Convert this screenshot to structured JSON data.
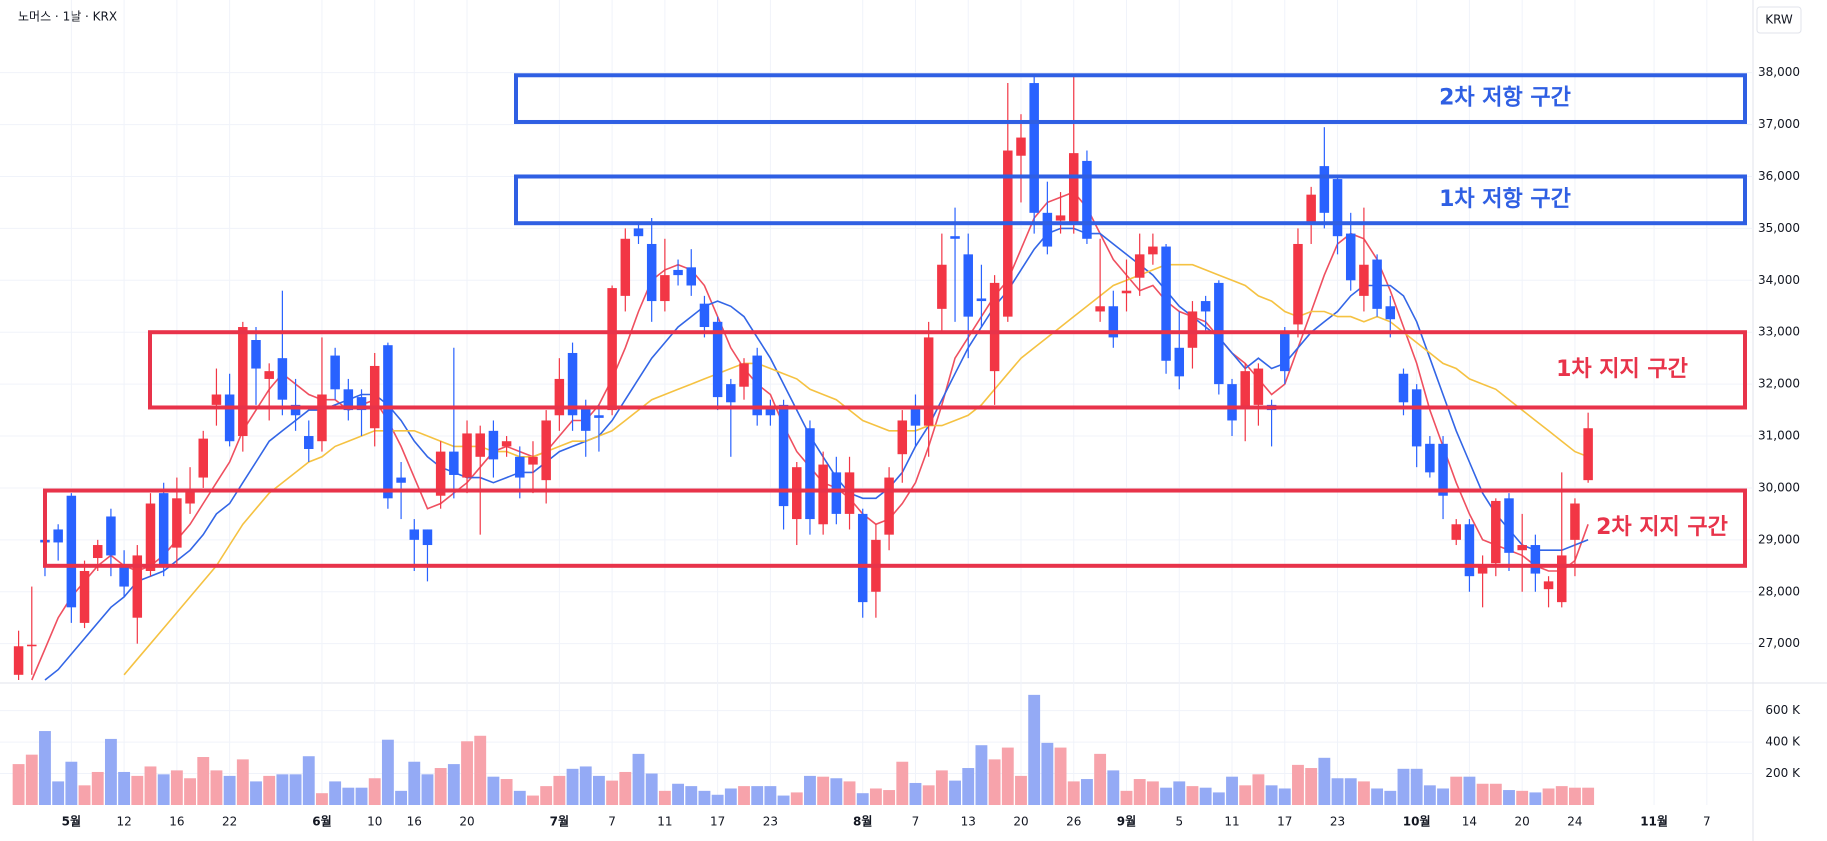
{
  "chart_data": {
    "type": "candlestick",
    "title": "노머스 · 1날 · KRX",
    "currency": "KRW",
    "categories": [
      null,
      null,
      null,
      null,
      "5월",
      null,
      null,
      null,
      "12",
      null,
      null,
      null,
      "16",
      null,
      null,
      null,
      "22",
      null,
      null,
      null,
      null,
      null,
      null,
      "6월",
      null,
      null,
      null,
      "10",
      null,
      null,
      "16",
      null,
      null,
      null,
      "20",
      null,
      null,
      null,
      null,
      null,
      null,
      "7월",
      null,
      null,
      null,
      "7",
      null,
      null,
      null,
      "11",
      null,
      null,
      null,
      "17",
      null,
      null,
      null,
      "23",
      null,
      null,
      null,
      null,
      null,
      null,
      "8월",
      null,
      null,
      null,
      "7",
      null,
      null,
      null,
      "13",
      null,
      null,
      null,
      "20",
      null,
      null,
      null,
      "26",
      null,
      null,
      null,
      "9월",
      null,
      null,
      null,
      "5",
      null,
      null,
      null,
      "11",
      null,
      null,
      null,
      "17",
      null,
      null,
      null,
      "23",
      null,
      null,
      null,
      null,
      null,
      "10월",
      null,
      null,
      null,
      "14",
      null,
      null,
      null,
      "20",
      null,
      null,
      null,
      "24",
      null,
      null,
      null,
      null,
      null,
      "11월",
      null,
      null,
      null,
      "7",
      null,
      null,
      null
    ],
    "open": [
      26400,
      26950,
      29000,
      29200,
      29850,
      27400,
      28650,
      29450,
      28500,
      27500,
      28400,
      29900,
      28850,
      29700,
      30200,
      31600,
      31800,
      31000,
      32850,
      32100,
      32500,
      31600,
      31000,
      30900,
      32550,
      31900,
      31750,
      31150,
      32750,
      30200,
      29200,
      29200,
      29850,
      30700,
      30200,
      30600,
      31100,
      30800,
      30600,
      30450,
      30150,
      31400,
      32600,
      31550,
      31400,
      31500,
      33700,
      35000,
      34700,
      33600,
      34200,
      34250,
      33550,
      33200,
      32000,
      31950,
      32550,
      31550,
      31600,
      29400,
      31150,
      29300,
      30300,
      29500,
      29500,
      28000,
      29100,
      30650,
      31550,
      31200,
      33450,
      34850,
      34500,
      33650,
      32250,
      33300,
      36400,
      37800,
      35300,
      35150,
      35100,
      36300,
      33400,
      33500,
      33750,
      34050,
      34500,
      34650,
      32700,
      32700,
      33600,
      33950,
      32000,
      31550,
      31600,
      31600,
      33000,
      33150,
      35100,
      36200,
      35950,
      34900,
      33700,
      34400,
      33500,
      32200,
      31900,
      30850,
      30850,
      29000,
      29300,
      28350,
      28550,
      29800,
      28800,
      28900,
      28050,
      27800,
      29000,
      30150,
      null,
      null,
      null,
      null,
      null,
      null,
      null,
      null,
      null,
      null,
      null,
      null
    ],
    "high": [
      27250,
      28100,
      29500,
      29300,
      29900,
      28600,
      29000,
      29600,
      28800,
      28900,
      29900,
      30100,
      30200,
      30400,
      31100,
      32300,
      32200,
      33200,
      33100,
      32400,
      33800,
      32100,
      31300,
      32900,
      32700,
      32100,
      31900,
      32600,
      32800,
      30500,
      29400,
      29200,
      30900,
      32700,
      31300,
      31200,
      31300,
      31000,
      30800,
      30900,
      31500,
      32500,
      32800,
      31700,
      31600,
      33900,
      35000,
      35100,
      35200,
      34800,
      34400,
      34600,
      33700,
      33300,
      32100,
      32500,
      32700,
      31700,
      31700,
      30500,
      31300,
      30700,
      30600,
      30600,
      29600,
      29300,
      30400,
      31500,
      31800,
      33200,
      34900,
      35400,
      34900,
      34300,
      34100,
      37800,
      37200,
      37950,
      35900,
      35700,
      37950,
      36500,
      34800,
      33800,
      34400,
      34900,
      34900,
      34700,
      33400,
      33600,
      33700,
      34000,
      32100,
      32400,
      32400,
      31700,
      33100,
      35000,
      35800,
      36950,
      36000,
      35300,
      35400,
      34500,
      33700,
      32300,
      32000,
      31000,
      31000,
      29400,
      29400,
      28700,
      29800,
      29900,
      29500,
      29100,
      28300,
      30300,
      29800,
      31450,
      null,
      null,
      null,
      null,
      null,
      null,
      null,
      null,
      null,
      null,
      null,
      null
    ],
    "low": [
      26300,
      26400,
      28300,
      28600,
      27400,
      27300,
      28400,
      28300,
      27900,
      27000,
      28300,
      28300,
      28500,
      29500,
      30000,
      31200,
      30800,
      30700,
      31600,
      31300,
      31400,
      31100,
      30500,
      30700,
      31700,
      31300,
      31000,
      30800,
      29600,
      29400,
      28400,
      28200,
      29600,
      29800,
      29900,
      29100,
      30200,
      30600,
      29800,
      29900,
      29700,
      31100,
      31100,
      30600,
      30700,
      31400,
      33400,
      34700,
      33200,
      33400,
      33900,
      33700,
      32900,
      31500,
      30600,
      31700,
      31200,
      31200,
      29200,
      28900,
      29100,
      29100,
      29300,
      29200,
      27500,
      27500,
      28800,
      30100,
      30800,
      30600,
      33000,
      33200,
      32500,
      33100,
      31600,
      33200,
      35500,
      34900,
      34500,
      34900,
      34900,
      34700,
      33200,
      32700,
      33400,
      33700,
      34300,
      32200,
      31900,
      32300,
      33000,
      31800,
      31000,
      30900,
      31200,
      30800,
      32000,
      32900,
      34700,
      35000,
      34500,
      33800,
      33400,
      33300,
      32900,
      31400,
      30400,
      30200,
      29400,
      28900,
      28000,
      27700,
      28300,
      28400,
      28000,
      28000,
      27700,
      27700,
      28300,
      30100,
      null,
      null,
      null,
      null,
      null,
      null,
      null,
      null,
      null,
      null,
      null,
      null
    ],
    "close": [
      26950,
      26980,
      28950,
      28950,
      27700,
      28400,
      28900,
      28700,
      28100,
      28700,
      29700,
      28500,
      29800,
      29950,
      30950,
      31800,
      30900,
      33100,
      32300,
      32250,
      31700,
      31400,
      30750,
      31800,
      31900,
      31500,
      31500,
      32350,
      29800,
      30100,
      29000,
      28900,
      30700,
      30250,
      31050,
      31050,
      30550,
      30900,
      30200,
      30600,
      31300,
      32100,
      31400,
      31100,
      31350,
      33850,
      34800,
      34850,
      33600,
      34100,
      34100,
      33900,
      33100,
      31750,
      31650,
      32400,
      31400,
      31400,
      29650,
      30400,
      29400,
      30450,
      29500,
      30300,
      27800,
      29000,
      30200,
      31300,
      31200,
      32900,
      34300,
      34800,
      33300,
      33600,
      33950,
      36500,
      36750,
      35300,
      34650,
      35250,
      36450,
      34800,
      33500,
      32900,
      33800,
      34500,
      34650,
      32450,
      32150,
      33400,
      33400,
      32000,
      31300,
      32250,
      32300,
      31500,
      32250,
      34700,
      35650,
      35300,
      34850,
      34000,
      34300,
      33450,
      33250,
      31650,
      30800,
      30300,
      29850,
      29300,
      28300,
      28500,
      29750,
      28750,
      28900,
      28350,
      28200,
      28700,
      29700,
      31150,
      null,
      null,
      null,
      null,
      null,
      null,
      null,
      null,
      null,
      null,
      null,
      null
    ],
    "up_color": "#f23645",
    "down_color": "#2962ff",
    "ylim": [
      26300,
      39400
    ],
    "yticks": [
      {
        "value": 27000,
        "label": "27,000"
      },
      {
        "value": 28000,
        "label": "28,000"
      },
      {
        "value": 29000,
        "label": "29,000"
      },
      {
        "value": 30000,
        "label": "30,000"
      },
      {
        "value": 31000,
        "label": "31,000"
      },
      {
        "value": 32000,
        "label": "32,000"
      },
      {
        "value": 33000,
        "label": "33,000"
      },
      {
        "value": 34000,
        "label": "34,000"
      },
      {
        "value": 35000,
        "label": "35,000"
      },
      {
        "value": 36000,
        "label": "36,000"
      },
      {
        "value": 37000,
        "label": "37,000"
      },
      {
        "value": 38000,
        "label": "38,000"
      }
    ],
    "moving_averages": [
      {
        "color": "#ef5060",
        "values": [
          null,
          26300,
          26900,
          27500,
          27900,
          28200,
          28500,
          28700,
          28500,
          28400,
          28500,
          28700,
          29000,
          29300,
          29700,
          30100,
          30500,
          31100,
          31500,
          31900,
          32200,
          32000,
          31800,
          31700,
          31700,
          31500,
          31600,
          31700,
          31300,
          30800,
          30200,
          29600,
          29700,
          29900,
          30100,
          30400,
          30700,
          30800,
          30700,
          30600,
          30700,
          31000,
          31300,
          31300,
          31600,
          32100,
          32700,
          33400,
          34000,
          34200,
          34300,
          34200,
          33900,
          33300,
          32700,
          32300,
          32000,
          31800,
          31200,
          30700,
          30400,
          30100,
          30000,
          29800,
          29500,
          29300,
          29400,
          29700,
          30100,
          30800,
          31600,
          32500,
          32900,
          33300,
          33700,
          34000,
          34600,
          35200,
          35500,
          35600,
          35700,
          35400,
          34900,
          34400,
          34100,
          33800,
          33900,
          33600,
          33400,
          33300,
          33200,
          32900,
          32600,
          32400,
          32100,
          31800,
          32000,
          32700,
          33400,
          34100,
          34700,
          34900,
          34800,
          34400,
          33800,
          33100,
          32400,
          31500,
          30800,
          30100,
          29500,
          29000,
          28900,
          28800,
          28700,
          28500,
          28400,
          28400,
          28600,
          29300,
          null,
          null,
          null,
          null,
          null,
          null,
          null,
          null,
          null,
          null,
          null,
          null
        ]
      },
      {
        "color": "#3366e6",
        "values": [
          null,
          null,
          26300,
          26500,
          26800,
          27100,
          27400,
          27700,
          27900,
          28200,
          28300,
          28400,
          28600,
          28800,
          29100,
          29500,
          29700,
          30100,
          30500,
          30900,
          31100,
          31300,
          31500,
          31500,
          31600,
          31700,
          31800,
          31800,
          31600,
          31300,
          30900,
          30600,
          30400,
          30300,
          30200,
          30200,
          30100,
          30200,
          30300,
          30300,
          30500,
          30700,
          30800,
          30900,
          31000,
          31300,
          31700,
          32100,
          32500,
          32800,
          33100,
          33300,
          33500,
          33600,
          33500,
          33300,
          32900,
          32500,
          32000,
          31500,
          31000,
          30600,
          30200,
          29900,
          29800,
          29800,
          30000,
          30300,
          30800,
          31200,
          31700,
          32200,
          32700,
          33100,
          33500,
          33800,
          34200,
          34600,
          34900,
          35000,
          35000,
          34900,
          34900,
          34700,
          34500,
          34300,
          34100,
          33800,
          33500,
          33300,
          33100,
          32900,
          32600,
          32300,
          32500,
          32300,
          32400,
          32700,
          33000,
          33200,
          33400,
          33700,
          33900,
          33900,
          33900,
          33700,
          33200,
          32500,
          31800,
          31100,
          30500,
          29900,
          29500,
          29200,
          28900,
          28800,
          28800,
          28800,
          28900,
          29000,
          null,
          null,
          null,
          null,
          null,
          null,
          null,
          null,
          null,
          null,
          null,
          null
        ]
      },
      {
        "color": "#f5c242",
        "values": [
          null,
          null,
          null,
          null,
          null,
          null,
          null,
          null,
          26400,
          26700,
          27000,
          27300,
          27600,
          27900,
          28200,
          28500,
          28900,
          29300,
          29600,
          29900,
          30100,
          30300,
          30500,
          30600,
          30800,
          30900,
          31000,
          31100,
          31100,
          31100,
          31100,
          31000,
          30900,
          30800,
          30800,
          30800,
          30700,
          30700,
          30600,
          30600,
          30700,
          30800,
          30900,
          30900,
          31000,
          31100,
          31300,
          31500,
          31700,
          31800,
          31900,
          32000,
          32100,
          32200,
          32300,
          32400,
          32400,
          32300,
          32200,
          32100,
          31900,
          31800,
          31700,
          31500,
          31300,
          31200,
          31100,
          31100,
          31100,
          31200,
          31200,
          31300,
          31400,
          31600,
          31900,
          32200,
          32500,
          32700,
          32900,
          33100,
          33300,
          33500,
          33700,
          33900,
          34000,
          34100,
          34200,
          34300,
          34300,
          34300,
          34200,
          34100,
          34000,
          33900,
          33700,
          33600,
          33400,
          33300,
          33400,
          33400,
          33300,
          33300,
          33200,
          33300,
          33200,
          33000,
          32800,
          32600,
          32400,
          32300,
          32100,
          32000,
          31900,
          31700,
          31500,
          31300,
          31100,
          30900,
          30700,
          30600,
          null,
          null,
          null,
          null,
          null,
          null,
          null,
          null,
          null,
          null,
          null,
          null
        ]
      }
    ],
    "volume": {
      "values": [
        260000,
        320000,
        470000,
        150000,
        275000,
        125000,
        210000,
        420000,
        210000,
        185000,
        245000,
        195000,
        220000,
        170000,
        305000,
        220000,
        185000,
        290000,
        150000,
        185000,
        195000,
        195000,
        310000,
        75000,
        150000,
        110000,
        110000,
        170000,
        415000,
        90000,
        275000,
        195000,
        235000,
        260000,
        405000,
        440000,
        180000,
        165000,
        90000,
        60000,
        120000,
        185000,
        230000,
        245000,
        185000,
        155000,
        210000,
        325000,
        200000,
        90000,
        135000,
        120000,
        90000,
        65000,
        105000,
        120000,
        120000,
        120000,
        60000,
        80000,
        185000,
        180000,
        170000,
        150000,
        75000,
        105000,
        95000,
        275000,
        140000,
        125000,
        220000,
        155000,
        235000,
        380000,
        290000,
        365000,
        185000,
        700000,
        395000,
        365000,
        150000,
        165000,
        325000,
        220000,
        90000,
        165000,
        150000,
        110000,
        150000,
        120000,
        110000,
        80000,
        180000,
        125000,
        195000,
        125000,
        105000,
        255000,
        235000,
        300000,
        170000,
        170000,
        150000,
        105000,
        90000,
        230000,
        230000,
        125000,
        105000,
        180000,
        180000,
        135000,
        135000,
        95000,
        90000,
        80000,
        105000,
        120000,
        110000,
        110000,
        null,
        null,
        null,
        null,
        null,
        null,
        null,
        null,
        null,
        null,
        null,
        null
      ],
      "ylim": [
        0,
        750000
      ],
      "yticks": [
        {
          "value": 200000,
          "label": "200 K"
        },
        {
          "value": 400000,
          "label": "400 K"
        },
        {
          "value": 600000,
          "label": "600 K"
        }
      ],
      "up_color": "#f7a3ab",
      "down_color": "#94aaf5"
    },
    "zones": [
      {
        "label": "2차 저항 구간",
        "low": 37050,
        "high": 37950,
        "color": "#2f5fe3"
      },
      {
        "label": "1차 저항 구간",
        "low": 35100,
        "high": 36000,
        "color": "#2f5fe3"
      },
      {
        "label": "1차 지지 구간",
        "low": 31550,
        "high": 33000,
        "color": "#e8334a"
      },
      {
        "label": "2차 지지 구간",
        "low": 28500,
        "high": 29950,
        "color": "#e8334a"
      }
    ]
  }
}
